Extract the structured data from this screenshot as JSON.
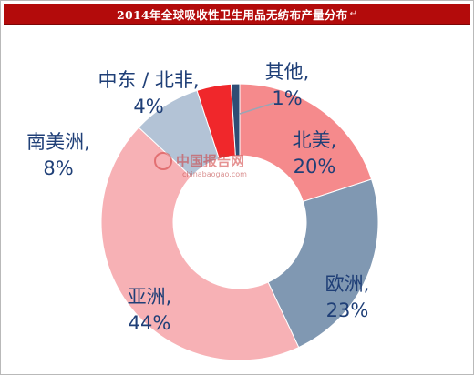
{
  "header": {
    "title": "2014年全球吸收性卫生用品无纺布产量分布",
    "title_mark": "↵",
    "background": "#b30b0b"
  },
  "watermark": {
    "text": "中国报告网",
    "url": "chinabaogao.com"
  },
  "chart_data": {
    "type": "pie",
    "variant": "donut",
    "title": "2014年全球吸收性卫生用品无纺布产量分布",
    "slices": [
      {
        "label": "北美,",
        "value": 20,
        "value_label": "20%",
        "color": "#f58a8c"
      },
      {
        "label": "欧洲,",
        "value": 23,
        "value_label": "23%",
        "color": "#8098b2"
      },
      {
        "label": "亚洲,",
        "value": 44,
        "value_label": "44%",
        "color": "#f7b1b5"
      },
      {
        "label": "南美洲,",
        "value": 8,
        "value_label": "8%",
        "color": "#b3c3d6"
      },
      {
        "label": "中东 / 北非,",
        "value": 4,
        "value_label": "4%",
        "color": "#f0272b"
      },
      {
        "label": "其他,",
        "value": 1,
        "value_label": "1%",
        "color": "#2f4d74"
      }
    ],
    "start_angle_deg": 0,
    "direction": "clockwise",
    "legend": "none",
    "label_color": "#1f3f77"
  }
}
